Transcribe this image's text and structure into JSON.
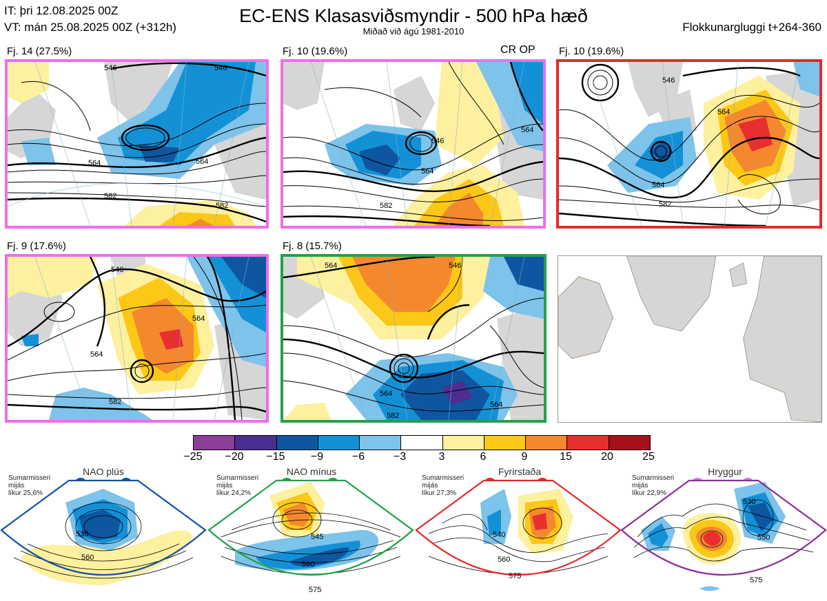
{
  "header": {
    "it": "IT: þri 12.08.2025 00Z",
    "vt": "VT: mán 25.08.2025 00Z  (+312h)",
    "title": "EC-ENS Klasasviðsmyndir - 500 hPa hæð",
    "subtitle": "Miðað við ágú 1981-2010",
    "window": "Flokkunargluggi t+264-360"
  },
  "panels": [
    {
      "label": "Fj. 14 (27.5%)",
      "contours": [
        "546",
        "564",
        "582",
        "582"
      ]
    },
    {
      "label": "Fj. 10 (19.6%)",
      "extra": "CR OP",
      "contours": [
        "564",
        "582",
        "546",
        "564"
      ]
    },
    {
      "label": "Fj. 10 (19.6%)",
      "contours": [
        "546",
        "564",
        "582",
        "564"
      ]
    },
    {
      "label": "Fj. 9 (17.6%)",
      "contours": [
        "546",
        "564",
        "564",
        "582"
      ]
    },
    {
      "label": "Fj. 8 (15.7%)",
      "contours": [
        "564",
        "546",
        "564",
        "582",
        "564"
      ]
    }
  ],
  "colorbar": {
    "ticks": [
      "−25",
      "−20",
      "−15",
      "−9",
      "−6",
      "−3",
      "3",
      "6",
      "9",
      "15",
      "20",
      "25"
    ],
    "colors": [
      "#8b3f96",
      "#4b2e8f",
      "#0f56a0",
      "#1491d6",
      "#7dc3ea",
      "#ffffff",
      "#fdf09e",
      "#fcc716",
      "#f4882e",
      "#e82f30",
      "#a5101a"
    ]
  },
  "regimes": [
    {
      "name": "NAO plús",
      "note": [
        "Sumarmisseri",
        "mijás",
        "líkur 25,6%"
      ],
      "color": "#1252a5",
      "contours": [
        "535",
        "560"
      ]
    },
    {
      "name": "NAO mínus",
      "note": [
        "Sumarmisseri",
        "mijás",
        "líkur 24,2%"
      ],
      "color": "#22a14a",
      "contours": [
        "545",
        "560",
        "575"
      ]
    },
    {
      "name": "Fyrirstaða",
      "note": [
        "Sumarmisseri",
        "mijás",
        "líkur 27,3%"
      ],
      "color": "#e42a2a",
      "contours": [
        "540",
        "560",
        "575"
      ]
    },
    {
      "name": "Hryggur",
      "note": [
        "Sumarmisseri",
        "mijás",
        "líkur 22,9%"
      ],
      "color": "#ee6ee8",
      "contours": [
        "530",
        "550",
        "575"
      ]
    }
  ]
}
